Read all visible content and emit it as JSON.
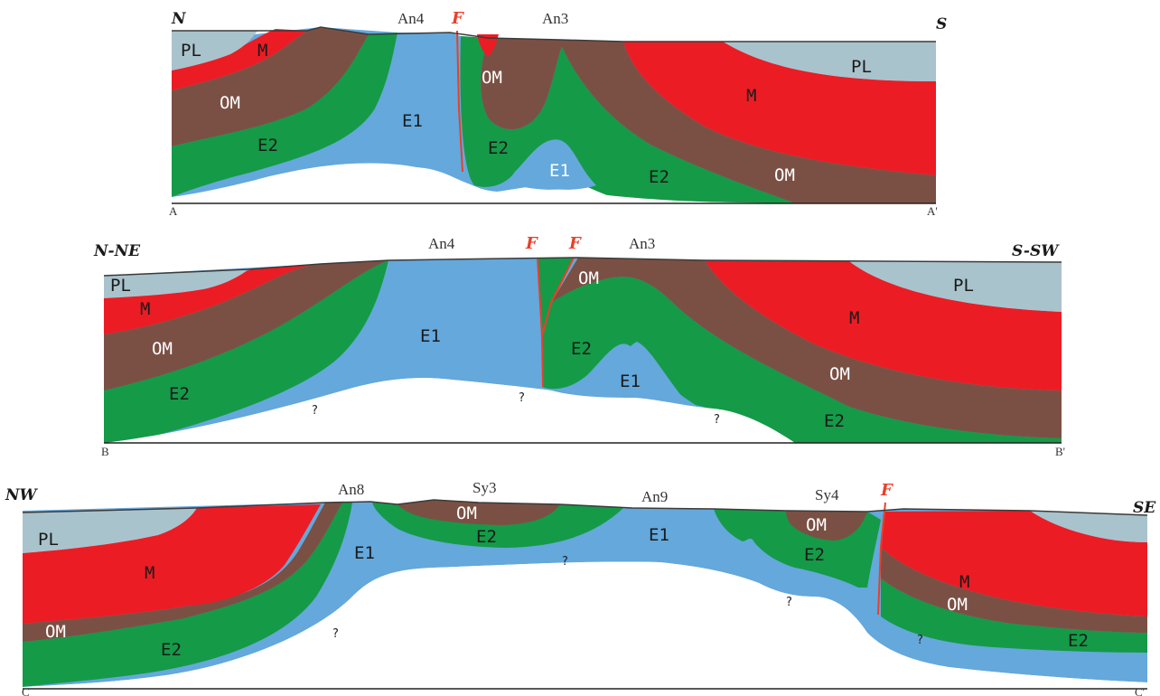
{
  "colors": {
    "PL": "#a9c3cc",
    "M": "#ec1c24",
    "OM": "#7b5044",
    "E2": "#159a47",
    "E1": "#64a8dc",
    "fault": "#e8402a",
    "baseline": "#222222"
  },
  "sections": [
    {
      "id": "A",
      "dir_left": "N",
      "dir_right": "S",
      "end_left": "A",
      "end_right": "A'",
      "fault_labels": [
        "F"
      ],
      "structures": [
        "An4",
        "An3"
      ],
      "units": [
        "PL",
        "M",
        "OM",
        "E1",
        "OM",
        "E2",
        "E2",
        "E1",
        "E2",
        "M",
        "PL",
        "OM"
      ],
      "question_marks": []
    },
    {
      "id": "B",
      "dir_left": "N-NE",
      "dir_right": "S-SW",
      "end_left": "B",
      "end_right": "B'",
      "fault_labels": [
        "F",
        "F"
      ],
      "structures": [
        "An4",
        "An3"
      ],
      "units": [
        "PL",
        "M",
        "OM",
        "E2",
        "E1",
        "OM",
        "E2",
        "E1",
        "M",
        "PL",
        "OM",
        "E2"
      ],
      "question_marks": [
        "?",
        "?",
        "?"
      ]
    },
    {
      "id": "C",
      "dir_left": "NW",
      "dir_right": "SE",
      "end_left": "C",
      "end_right": "C'",
      "fault_labels": [
        "F"
      ],
      "structures": [
        "An8",
        "Sy3",
        "An9",
        "Sy4"
      ],
      "units": [
        "PL",
        "M",
        "OM",
        "E2",
        "E1",
        "OM",
        "E2",
        "E1",
        "OM",
        "E2",
        "M",
        "OM",
        "E2"
      ],
      "question_marks": [
        "?",
        "?",
        "?",
        "?"
      ]
    }
  ]
}
